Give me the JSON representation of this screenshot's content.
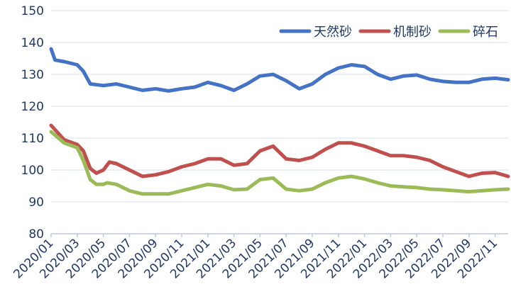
{
  "chart_data": {
    "type": "line",
    "title": "",
    "xlabel": "",
    "ylabel": "",
    "ylim": [
      80,
      150
    ],
    "y_ticks": [
      80,
      90,
      100,
      110,
      120,
      130,
      140,
      150
    ],
    "x_range": [
      "2020-01",
      "2022-12"
    ],
    "x_ticks": [
      "2020/01",
      "2020/03",
      "2020/05",
      "2020/07",
      "2020/09",
      "2020/11",
      "2021/01",
      "2021/03",
      "2021/05",
      "2021/07",
      "2021/09",
      "2021/11",
      "2022/01",
      "2022/03",
      "2022/05",
      "2022/07",
      "2022/09",
      "2022/11"
    ],
    "x_tick_rotation": -45,
    "grid": true,
    "legend_position": "top-right",
    "series": [
      {
        "name": "天然砂",
        "color": "#4472c4",
        "points": [
          [
            "2020-01",
            138
          ],
          [
            "2020-01-10",
            134.5
          ],
          [
            "2020-02",
            134
          ],
          [
            "2020-03",
            133
          ],
          [
            "2020-03-15",
            131
          ],
          [
            "2020-04",
            127
          ],
          [
            "2020-05",
            126.5
          ],
          [
            "2020-06",
            127
          ],
          [
            "2020-07",
            126
          ],
          [
            "2020-08",
            125
          ],
          [
            "2020-09",
            125.5
          ],
          [
            "2020-10",
            124.8
          ],
          [
            "2020-11",
            125.5
          ],
          [
            "2020-12",
            126
          ],
          [
            "2021-01",
            127.5
          ],
          [
            "2021-02",
            126.5
          ],
          [
            "2021-03",
            125
          ],
          [
            "2021-04",
            127
          ],
          [
            "2021-05",
            129.5
          ],
          [
            "2021-06",
            130
          ],
          [
            "2021-07",
            128
          ],
          [
            "2021-08",
            125.5
          ],
          [
            "2021-09",
            127
          ],
          [
            "2021-10",
            130
          ],
          [
            "2021-11",
            132
          ],
          [
            "2021-12",
            133
          ],
          [
            "2022-01",
            132.5
          ],
          [
            "2022-02",
            130
          ],
          [
            "2022-03",
            128.5
          ],
          [
            "2022-04",
            129.5
          ],
          [
            "2022-05",
            129.8
          ],
          [
            "2022-06",
            128.5
          ],
          [
            "2022-07",
            127.8
          ],
          [
            "2022-08",
            127.5
          ],
          [
            "2022-09",
            127.5
          ],
          [
            "2022-10",
            128.5
          ],
          [
            "2022-11",
            128.8
          ],
          [
            "2022-12",
            128.3
          ]
        ]
      },
      {
        "name": "机制砂",
        "color": "#c0504d",
        "points": [
          [
            "2020-01",
            114
          ],
          [
            "2020-02",
            109.5
          ],
          [
            "2020-03",
            108
          ],
          [
            "2020-03-15",
            106
          ],
          [
            "2020-04",
            100.5
          ],
          [
            "2020-04-15",
            99
          ],
          [
            "2020-05",
            100
          ],
          [
            "2020-05-15",
            102.5
          ],
          [
            "2020-06",
            102
          ],
          [
            "2020-07",
            100
          ],
          [
            "2020-08",
            98
          ],
          [
            "2020-09",
            98.5
          ],
          [
            "2020-10",
            99.5
          ],
          [
            "2020-11",
            101
          ],
          [
            "2020-12",
            102
          ],
          [
            "2021-01",
            103.5
          ],
          [
            "2021-02",
            103.5
          ],
          [
            "2021-03",
            101.5
          ],
          [
            "2021-04",
            102
          ],
          [
            "2021-05",
            106
          ],
          [
            "2021-06",
            107.5
          ],
          [
            "2021-07",
            103.5
          ],
          [
            "2021-08",
            103
          ],
          [
            "2021-09",
            104
          ],
          [
            "2021-10",
            106.5
          ],
          [
            "2021-11",
            108.5
          ],
          [
            "2021-12",
            108.5
          ],
          [
            "2022-01",
            107.5
          ],
          [
            "2022-02",
            106
          ],
          [
            "2022-03",
            104.5
          ],
          [
            "2022-04",
            104.5
          ],
          [
            "2022-05",
            104
          ],
          [
            "2022-06",
            103
          ],
          [
            "2022-07",
            101
          ],
          [
            "2022-08",
            99.5
          ],
          [
            "2022-09",
            98
          ],
          [
            "2022-10",
            99
          ],
          [
            "2022-11",
            99.2
          ],
          [
            "2022-12",
            98
          ]
        ]
      },
      {
        "name": "碎石",
        "color": "#9bbb59",
        "points": [
          [
            "2020-01",
            112
          ],
          [
            "2020-02",
            108.5
          ],
          [
            "2020-03",
            107
          ],
          [
            "2020-03-15",
            103
          ],
          [
            "2020-04",
            97
          ],
          [
            "2020-04-15",
            95.5
          ],
          [
            "2020-05",
            95.5
          ],
          [
            "2020-05-10",
            96
          ],
          [
            "2020-06",
            95.5
          ],
          [
            "2020-07",
            93.5
          ],
          [
            "2020-08",
            92.5
          ],
          [
            "2020-09",
            92.5
          ],
          [
            "2020-10",
            92.5
          ],
          [
            "2020-11",
            93.5
          ],
          [
            "2020-12",
            94.5
          ],
          [
            "2021-01",
            95.5
          ],
          [
            "2021-02",
            95
          ],
          [
            "2021-03",
            93.8
          ],
          [
            "2021-04",
            94
          ],
          [
            "2021-05",
            97
          ],
          [
            "2021-06",
            97.5
          ],
          [
            "2021-07",
            94
          ],
          [
            "2021-08",
            93.5
          ],
          [
            "2021-09",
            94
          ],
          [
            "2021-10",
            96
          ],
          [
            "2021-11",
            97.5
          ],
          [
            "2021-12",
            98
          ],
          [
            "2022-01",
            97.2
          ],
          [
            "2022-02",
            96
          ],
          [
            "2022-03",
            95
          ],
          [
            "2022-04",
            94.7
          ],
          [
            "2022-05",
            94.5
          ],
          [
            "2022-06",
            94
          ],
          [
            "2022-07",
            93.8
          ],
          [
            "2022-08",
            93.5
          ],
          [
            "2022-09",
            93.2
          ],
          [
            "2022-10",
            93.5
          ],
          [
            "2022-11",
            93.8
          ],
          [
            "2022-12",
            94
          ]
        ]
      }
    ]
  }
}
